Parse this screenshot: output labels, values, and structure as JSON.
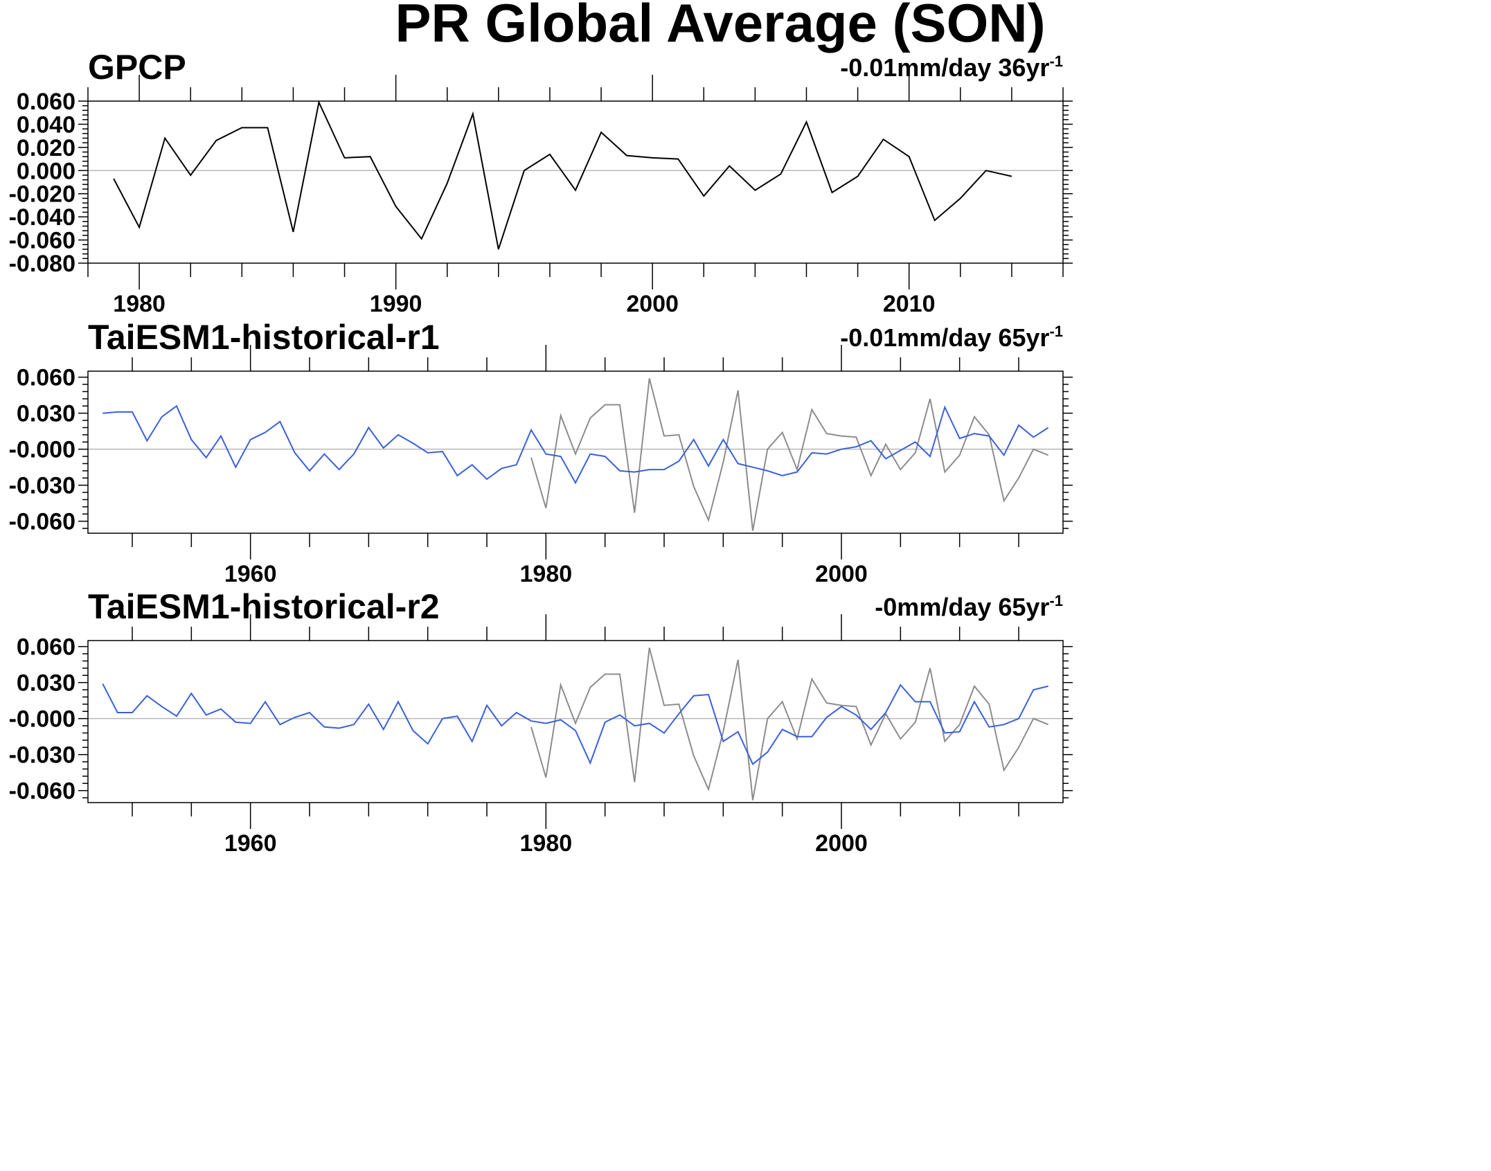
{
  "title": "PR Global Average (SON)",
  "colors": {
    "model": "#3a5fdc",
    "obs_overlay": "#8c8c8c",
    "obs": "#000000",
    "zero_line": "#b8b8b8"
  },
  "chart_data": [
    {
      "type": "line",
      "title": "GPCP",
      "trend_main": "-0.01mm/day 36yr",
      "trend_sup": "-1",
      "xlim": [
        1978,
        2016
      ],
      "ylim": [
        -0.08,
        0.06
      ],
      "yticks": [
        0.06,
        0.04,
        0.02,
        0.0,
        -0.02,
        -0.04,
        -0.06,
        -0.08
      ],
      "ytick_labels": [
        "0.060",
        "0.040",
        "0.020",
        "0.000",
        "-0.020",
        "-0.040",
        "-0.060",
        "-0.080"
      ],
      "xticks": [
        1980,
        1990,
        2000,
        2010
      ],
      "xtick_labels": [
        "1980",
        "1990",
        "2000",
        "2010"
      ],
      "x": [
        1979,
        1980,
        1981,
        1982,
        1983,
        1984,
        1985,
        1986,
        1987,
        1988,
        1989,
        1990,
        1991,
        1992,
        1993,
        1994,
        1995,
        1996,
        1997,
        1998,
        1999,
        2000,
        2001,
        2002,
        2003,
        2004,
        2005,
        2006,
        2007,
        2008,
        2009,
        2010,
        2011,
        2012,
        2013,
        2014
      ],
      "series": [
        {
          "values": [
            -0.007,
            -0.049,
            0.028,
            -0.004,
            0.026,
            0.037,
            0.037,
            -0.053,
            0.059,
            0.011,
            0.012,
            -0.031,
            -0.059,
            -0.011,
            0.049,
            -0.068,
            0.0,
            0.014,
            -0.017,
            0.033,
            0.013,
            0.011,
            0.01,
            -0.022,
            0.004,
            -0.017,
            -0.003,
            0.042,
            -0.019,
            -0.005,
            0.027,
            0.012,
            -0.043,
            -0.024,
            0.0,
            -0.005
          ]
        }
      ]
    },
    {
      "type": "line",
      "title": "TaiESM1-historical-r1",
      "trend_main": "-0.01mm/day 65yr",
      "trend_sup": "-1",
      "xlim": [
        1949,
        2015
      ],
      "ylim": [
        -0.07,
        0.065
      ],
      "yticks": [
        0.06,
        0.03,
        0.0,
        -0.03,
        -0.06
      ],
      "ytick_labels": [
        "0.060",
        "0.030",
        "-0.000",
        "-0.030",
        "-0.060"
      ],
      "xticks": [
        1960,
        1980,
        2000
      ],
      "xtick_labels": [
        "1960",
        "1980",
        "2000"
      ],
      "x": [
        1950,
        1951,
        1952,
        1953,
        1954,
        1955,
        1956,
        1957,
        1958,
        1959,
        1960,
        1961,
        1962,
        1963,
        1964,
        1965,
        1966,
        1967,
        1968,
        1969,
        1970,
        1971,
        1972,
        1973,
        1974,
        1975,
        1976,
        1977,
        1978,
        1979,
        1980,
        1981,
        1982,
        1983,
        1984,
        1985,
        1986,
        1987,
        1988,
        1989,
        1990,
        1991,
        1992,
        1993,
        1994,
        1995,
        1996,
        1997,
        1998,
        1999,
        2000,
        2001,
        2002,
        2003,
        2004,
        2005,
        2006,
        2007,
        2008,
        2009,
        2010,
        2011,
        2012,
        2013,
        2014
      ],
      "series": [
        {
          "name": "TaiESM1-historical-r1",
          "values": [
            0.03,
            0.031,
            0.031,
            0.007,
            0.027,
            0.036,
            0.008,
            -0.007,
            0.011,
            -0.015,
            0.008,
            0.014,
            0.023,
            -0.003,
            -0.018,
            -0.004,
            -0.017,
            -0.004,
            0.018,
            0.001,
            0.012,
            0.005,
            -0.003,
            -0.002,
            -0.022,
            -0.013,
            -0.025,
            -0.016,
            -0.013,
            0.016,
            -0.004,
            -0.006,
            -0.028,
            -0.004,
            -0.006,
            -0.018,
            -0.019,
            -0.017,
            -0.017,
            -0.01,
            0.008,
            -0.014,
            0.008,
            -0.012,
            -0.015,
            -0.018,
            -0.022,
            -0.019,
            -0.003,
            -0.004,
            0.0,
            0.002,
            0.007,
            -0.008,
            -0.001,
            0.006,
            -0.006,
            0.035,
            0.009,
            0.013,
            0.011,
            -0.005,
            0.02,
            0.01,
            0.018
          ]
        }
      ],
      "overlay": {
        "x_start": 1979,
        "source": "GPCP"
      }
    },
    {
      "type": "line",
      "title": "TaiESM1-historical-r2",
      "trend_main": "-0mm/day 65yr",
      "trend_sup": "-1",
      "xlim": [
        1949,
        2015
      ],
      "ylim": [
        -0.07,
        0.065
      ],
      "yticks": [
        0.06,
        0.03,
        0.0,
        -0.03,
        -0.06
      ],
      "ytick_labels": [
        "0.060",
        "0.030",
        "-0.000",
        "-0.030",
        "-0.060"
      ],
      "xticks": [
        1960,
        1980,
        2000
      ],
      "xtick_labels": [
        "1960",
        "1980",
        "2000"
      ],
      "x": [
        1950,
        1951,
        1952,
        1953,
        1954,
        1955,
        1956,
        1957,
        1958,
        1959,
        1960,
        1961,
        1962,
        1963,
        1964,
        1965,
        1966,
        1967,
        1968,
        1969,
        1970,
        1971,
        1972,
        1973,
        1974,
        1975,
        1976,
        1977,
        1978,
        1979,
        1980,
        1981,
        1982,
        1983,
        1984,
        1985,
        1986,
        1987,
        1988,
        1989,
        1990,
        1991,
        1992,
        1993,
        1994,
        1995,
        1996,
        1997,
        1998,
        1999,
        2000,
        2001,
        2002,
        2003,
        2004,
        2005,
        2006,
        2007,
        2008,
        2009,
        2010,
        2011,
        2012,
        2013,
        2014
      ],
      "series": [
        {
          "name": "TaiESM1-historical-r2",
          "values": [
            0.029,
            0.005,
            0.005,
            0.019,
            0.01,
            0.002,
            0.021,
            0.003,
            0.008,
            -0.003,
            -0.004,
            0.014,
            -0.005,
            0.001,
            0.005,
            -0.007,
            -0.008,
            -0.005,
            0.012,
            -0.009,
            0.014,
            -0.01,
            -0.021,
            0.0,
            0.002,
            -0.019,
            0.011,
            -0.006,
            0.005,
            -0.002,
            -0.004,
            -0.001,
            -0.01,
            -0.037,
            -0.003,
            0.003,
            -0.006,
            -0.004,
            -0.012,
            0.004,
            0.019,
            0.02,
            -0.019,
            -0.011,
            -0.038,
            -0.028,
            -0.009,
            -0.015,
            -0.015,
            0.001,
            0.01,
            0.003,
            -0.009,
            0.005,
            0.028,
            0.014,
            0.014,
            -0.012,
            -0.011,
            0.014,
            -0.007,
            -0.005,
            0.0,
            0.024,
            0.027
          ]
        }
      ],
      "overlay": {
        "x_start": 1979,
        "source": "GPCP"
      }
    }
  ]
}
